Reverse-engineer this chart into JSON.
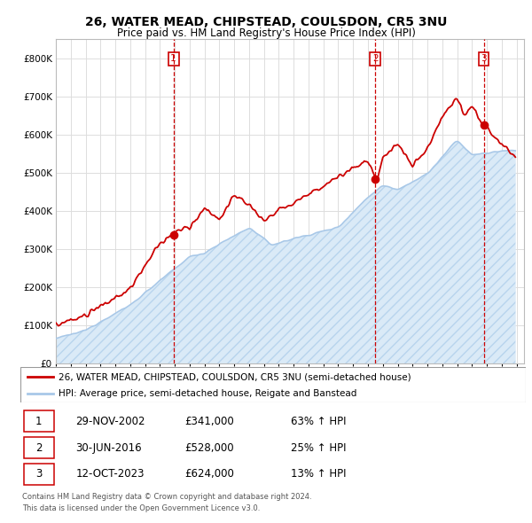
{
  "title": "26, WATER MEAD, CHIPSTEAD, COULSDON, CR5 3NU",
  "subtitle": "Price paid vs. HM Land Registry's House Price Index (HPI)",
  "legend_line1": "26, WATER MEAD, CHIPSTEAD, COULSDON, CR5 3NU (semi-detached house)",
  "legend_line2": "HPI: Average price, semi-detached house, Reigate and Banstead",
  "footer1": "Contains HM Land Registry data © Crown copyright and database right 2024.",
  "footer2": "This data is licensed under the Open Government Licence v3.0.",
  "sale_points": [
    {
      "label": "1",
      "date": "29-NOV-2002",
      "price": 341000,
      "pct": "63% ↑ HPI",
      "x_year": 2002.91
    },
    {
      "label": "2",
      "date": "30-JUN-2016",
      "price": 528000,
      "pct": "25% ↑ HPI",
      "x_year": 2016.5
    },
    {
      "label": "3",
      "date": "12-OCT-2023",
      "price": 624000,
      "pct": "13% ↑ HPI",
      "x_year": 2023.79
    }
  ],
  "hpi_color": "#a8c8e8",
  "hpi_fill_color": "#daeaf7",
  "price_color": "#cc0000",
  "vline_color": "#cc0000",
  "background_color": "#ffffff",
  "grid_color": "#dddddd",
  "ylim": [
    0,
    850000
  ],
  "xlim_start": 1995.0,
  "xlim_end": 2026.5,
  "yticks": [
    0,
    100000,
    200000,
    300000,
    400000,
    500000,
    600000,
    700000,
    800000
  ]
}
